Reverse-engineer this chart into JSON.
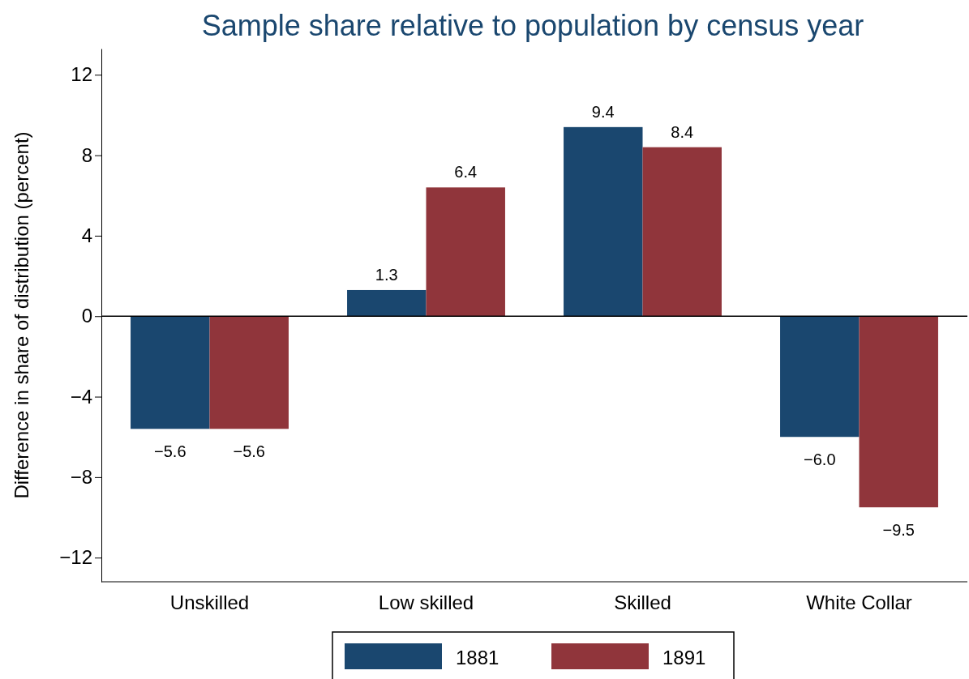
{
  "chart_data": {
    "type": "bar",
    "title": "Sample share relative to population by census year",
    "ylabel": "Difference in share of distribution (percent)",
    "categories": [
      "Unskilled",
      "Low skilled",
      "Skilled",
      "White Collar"
    ],
    "series": [
      {
        "name": "1881",
        "color": "#1a476f",
        "values": [
          -5.6,
          1.3,
          9.4,
          -6.0
        ],
        "value_labels": [
          "−5.6",
          "1.3",
          "9.4",
          "−6.0"
        ]
      },
      {
        "name": "1891",
        "color": "#90353b",
        "values": [
          -5.6,
          6.4,
          8.4,
          -9.5
        ],
        "value_labels": [
          "−5.6",
          "6.4",
          "8.4",
          "−9.5"
        ]
      }
    ],
    "ylim": [
      -13.2,
      13.3
    ],
    "yticks": [
      {
        "value": -12,
        "label": "−12"
      },
      {
        "value": -8,
        "label": "−8"
      },
      {
        "value": -4,
        "label": "−4"
      },
      0,
      4,
      8,
      12
    ],
    "ref_lines": [
      {
        "axis": "y",
        "value": 0
      }
    ],
    "grid": false,
    "legend": "bottom"
  }
}
